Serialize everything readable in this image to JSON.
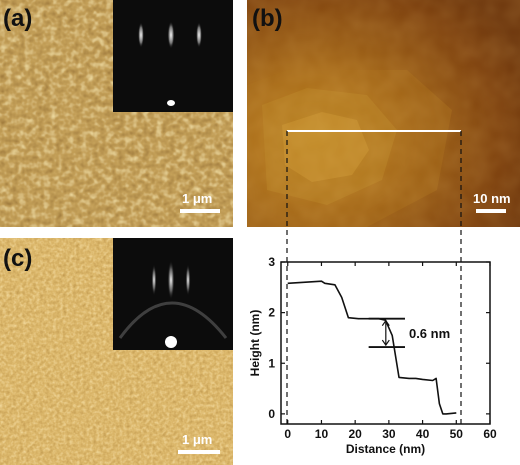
{
  "panels": {
    "a": {
      "label": "(a)",
      "scale_bar": "1 μm"
    },
    "b": {
      "label": "(b)",
      "scale_bar": "10 nm"
    },
    "c": {
      "label": "(c)",
      "scale_bar": "1 μm"
    }
  },
  "colors": {
    "afm_dark": "#5a2f0b",
    "afm_mid": "#b27222",
    "afm_light": "#e8c46a",
    "rheed_bg": "#0c0c0c",
    "profile_line": "#111111"
  },
  "chart_data": {
    "type": "line",
    "title": "",
    "xlabel": "Distance (nm)",
    "ylabel": "Height (nm)",
    "xlim": [
      -2,
      60
    ],
    "ylim": [
      -0.2,
      3
    ],
    "xticks": [
      0,
      10,
      20,
      30,
      40,
      50,
      60
    ],
    "yticks": [
      0,
      1,
      2,
      3
    ],
    "grid": false,
    "series": [
      {
        "x": [
          0,
          10,
          11,
          14,
          16,
          18,
          21,
          25,
          27,
          29,
          31,
          33,
          36,
          38,
          40,
          43,
          44,
          45,
          46,
          47,
          50
        ],
        "y": [
          2.58,
          2.62,
          2.58,
          2.55,
          2.3,
          1.9,
          1.88,
          1.88,
          1.88,
          1.85,
          1.55,
          0.72,
          0.7,
          0.7,
          0.68,
          0.66,
          0.7,
          0.2,
          0.0,
          0.0,
          0.02
        ]
      }
    ],
    "annotation": {
      "text": "0.6 nm",
      "upper_y": 1.88,
      "lower_y": 1.32,
      "x_from": 24,
      "x_to": 33
    }
  }
}
